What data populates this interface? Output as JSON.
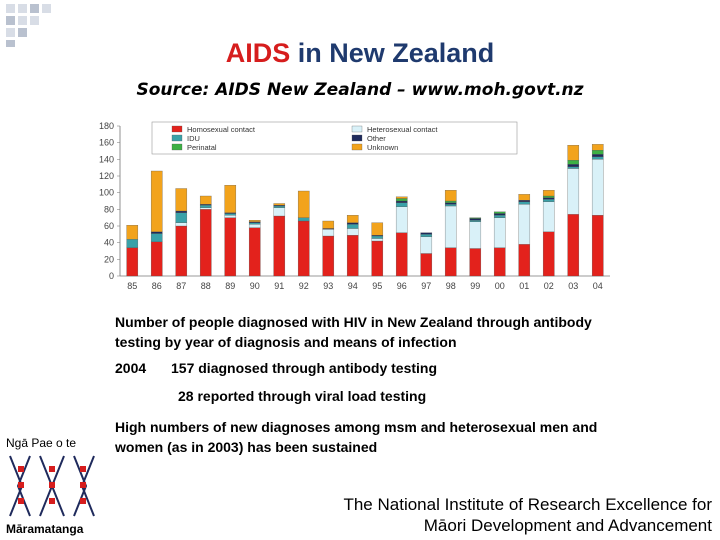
{
  "title": {
    "highlight": "AIDS",
    "rest": " in New Zealand"
  },
  "source": "Source: AIDS New Zealand – www.moh.govt.nz",
  "caption": "Number of people diagnosed with HIV in New Zealand through antibody testing by year of diagnosis and means of infection",
  "year_2004": {
    "year": "2004",
    "text": "157 diagnosed through antibody testing"
  },
  "viral_load": "28 reported through viral load testing",
  "sustained": "High numbers of new diagnoses among msm and heterosexual men and women (as in 2003) has been sustained",
  "logo": {
    "top": "Ngā Pae o te",
    "bottom": "Māramatanga"
  },
  "institute": {
    "line1": "The National Institute of Research Excellence for",
    "line2": "Māori Development and Advancement"
  },
  "colors": {
    "title_blue": "#1f3a6e",
    "title_red": "#d61d1d",
    "homosexual": "#e3221c",
    "heterosexual": "#d9f1f8",
    "idu": "#3aa1a8",
    "other": "#1f2a5c",
    "perinatal": "#3cb044",
    "unknown": "#f2a31c"
  },
  "chart_data": {
    "type": "bar",
    "stacked": true,
    "categories": [
      "85",
      "86",
      "87",
      "88",
      "89",
      "90",
      "91",
      "92",
      "93",
      "94",
      "95",
      "96",
      "97",
      "98",
      "99",
      "00",
      "01",
      "02",
      "03",
      "04"
    ],
    "ylim": [
      0,
      180
    ],
    "yticks": [
      "0",
      "20",
      "40",
      "60",
      "80",
      "100",
      "120",
      "140",
      "160",
      "180"
    ],
    "legend_position": "top",
    "series": [
      {
        "name": "Homosexual contact",
        "color": "#e3221c",
        "values": [
          34,
          41,
          60,
          80,
          70,
          58,
          72,
          66,
          48,
          49,
          42,
          52,
          27,
          34,
          33,
          34,
          38,
          53,
          74,
          73
        ]
      },
      {
        "name": "Heterosexual contact",
        "color": "#d9f1f8",
        "values": [
          0,
          0,
          4,
          2,
          3,
          4,
          10,
          0,
          8,
          8,
          3,
          31,
          20,
          50,
          32,
          36,
          48,
          36,
          55,
          67
        ]
      },
      {
        "name": "IDU",
        "color": "#3aa1a8",
        "values": [
          10,
          10,
          12,
          3,
          2,
          2,
          2,
          4,
          0,
          5,
          3,
          5,
          3,
          2,
          2,
          3,
          3,
          3,
          2,
          3
        ]
      },
      {
        "name": "Other",
        "color": "#1f2a5c",
        "values": [
          0,
          2,
          2,
          1,
          1,
          1,
          1,
          0,
          1,
          2,
          1,
          2,
          2,
          2,
          2,
          2,
          2,
          2,
          3,
          3
        ]
      },
      {
        "name": "Perinatal",
        "color": "#3cb044",
        "values": [
          0,
          0,
          0,
          0,
          0,
          0,
          0,
          0,
          0,
          0,
          0,
          3,
          0,
          2,
          1,
          2,
          0,
          2,
          5,
          5
        ]
      },
      {
        "name": "Unknown",
        "color": "#f2a31c",
        "values": [
          17,
          73,
          27,
          10,
          33,
          2,
          2,
          32,
          9,
          9,
          15,
          2,
          0,
          13,
          0,
          0,
          7,
          7,
          18,
          7
        ]
      }
    ]
  }
}
